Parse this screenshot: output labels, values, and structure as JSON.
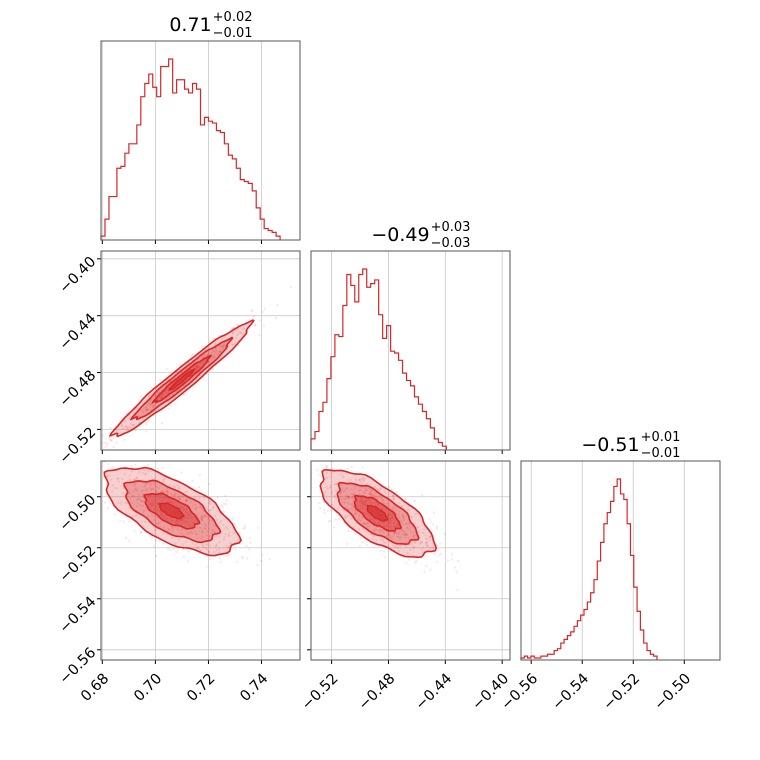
{
  "chart_data": {
    "type": "corner",
    "color": "#d62728",
    "grid": true,
    "parameters": [
      {
        "title": {
          "median": "0.71",
          "plus": "+0.02",
          "minus": "−0.01"
        },
        "range": [
          0.6795,
          0.7545
        ],
        "ticks": [
          0.68,
          0.7,
          0.72,
          0.74
        ],
        "tick_labels": [
          "0.68",
          "0.70",
          "0.72",
          "0.74"
        ],
        "histogram": {
          "bin_start": 0.6795,
          "bin_width": 0.0015,
          "counts": [
            1,
            10,
            22,
            22,
            37,
            38,
            45,
            50,
            50,
            60,
            75,
            82,
            87,
            80,
            75,
            91,
            91,
            95,
            77,
            84,
            84,
            79,
            77,
            82,
            79,
            60,
            64,
            62,
            61,
            57,
            56,
            50,
            44,
            42,
            37,
            31,
            30,
            29,
            25,
            16,
            10,
            5,
            4,
            3,
            1
          ],
          "max": 95
        }
      },
      {
        "title": {
          "median": "−0.49",
          "plus": "+0.03",
          "minus": "−0.03"
        },
        "range": [
          -0.5345,
          -0.3945
        ],
        "ticks": [
          -0.52,
          -0.48,
          -0.44,
          -0.4
        ],
        "tick_labels": [
          "−0.52",
          "−0.48",
          "−0.44",
          "−0.40"
        ],
        "histogram": {
          "bin_start": -0.5345,
          "bin_width": 0.0028,
          "counts": [
            5,
            9,
            20,
            25,
            38,
            50,
            62,
            61,
            78,
            95,
            89,
            80,
            95,
            98,
            88,
            90,
            92,
            73,
            60,
            67,
            53,
            52,
            48,
            41,
            37,
            34,
            28,
            24,
            20,
            16,
            11,
            5,
            3,
            1
          ],
          "max": 98
        }
      },
      {
        "title": {
          "median": "−0.51",
          "plus": "+0.01",
          "minus": "−0.01"
        },
        "range": [
          -0.564,
          -0.486
        ],
        "ticks": [
          -0.56,
          -0.54,
          -0.52,
          -0.5
        ],
        "tick_labels": [
          "−0.56",
          "−0.54",
          "−0.52",
          "−0.50"
        ],
        "histogram": {
          "bin_start": -0.564,
          "bin_width": 0.0013,
          "counts": [
            0,
            1,
            0,
            1,
            0,
            0,
            1,
            1,
            2,
            2,
            4,
            5,
            8,
            10,
            12,
            14,
            17,
            20,
            23,
            26,
            30,
            35,
            42,
            52,
            62,
            72,
            78,
            84,
            92,
            96,
            88,
            85,
            72,
            55,
            38,
            25,
            15,
            8,
            4,
            2,
            1
          ],
          "max": 96
        }
      }
    ],
    "pairs": [
      {
        "x": 0,
        "y": 1,
        "center": [
          0.71,
          -0.485
        ],
        "sd": [
          0.013,
          0.02
        ],
        "rho": 0.97
      },
      {
        "x": 0,
        "y": 2,
        "center": [
          0.706,
          -0.5055
        ],
        "sd": [
          0.0125,
          0.0085
        ],
        "rho": -0.65
      },
      {
        "x": 1,
        "y": 2,
        "center": [
          -0.488,
          -0.5065
        ],
        "sd": [
          0.02,
          0.0085
        ],
        "rho": -0.7
      }
    ]
  }
}
